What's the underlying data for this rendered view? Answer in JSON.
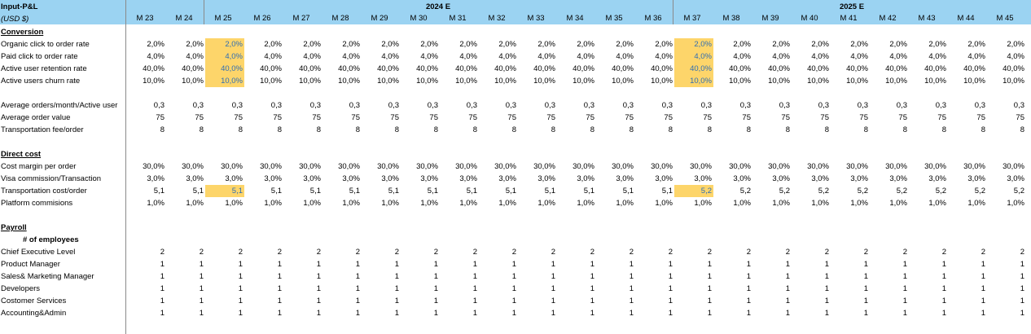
{
  "sheet": {
    "title": "Input-P&L",
    "currency": "(USD $)",
    "years": [
      "2024 E",
      "2025 E"
    ],
    "months": [
      "M 23",
      "M 24",
      "M 25",
      "M 26",
      "M 27",
      "M 28",
      "M 29",
      "M 30",
      "M 31",
      "M 32",
      "M 33",
      "M 34",
      "M 35",
      "M 36",
      "M 37",
      "M 38",
      "M 39",
      "M 40",
      "M 41",
      "M 42",
      "M 43",
      "M 44",
      "M 45"
    ],
    "highlight_color": "#fdd56a",
    "header_color": "#9bd3f2",
    "rows": [
      {
        "label": "Conversion",
        "type": "section"
      },
      {
        "label": "Organic click to order rate",
        "values": [
          "2,0%",
          "2,0%",
          "2,0%",
          "2,0%",
          "2,0%",
          "2,0%",
          "2,0%",
          "2,0%",
          "2,0%",
          "2,0%",
          "2,0%",
          "2,0%",
          "2,0%",
          "2,0%",
          "2,0%",
          "2,0%",
          "2,0%",
          "2,0%",
          "2,0%",
          "2,0%",
          "2,0%",
          "2,0%",
          "2,0%"
        ],
        "highlight": [
          2,
          14
        ]
      },
      {
        "label": "Paid click to order rate",
        "values": [
          "4,0%",
          "4,0%",
          "4,0%",
          "4,0%",
          "4,0%",
          "4,0%",
          "4,0%",
          "4,0%",
          "4,0%",
          "4,0%",
          "4,0%",
          "4,0%",
          "4,0%",
          "4,0%",
          "4,0%",
          "4,0%",
          "4,0%",
          "4,0%",
          "4,0%",
          "4,0%",
          "4,0%",
          "4,0%",
          "4,0%"
        ],
        "highlight": [
          2,
          14
        ]
      },
      {
        "label": "Active user retention rate",
        "values": [
          "40,0%",
          "40,0%",
          "40,0%",
          "40,0%",
          "40,0%",
          "40,0%",
          "40,0%",
          "40,0%",
          "40,0%",
          "40,0%",
          "40,0%",
          "40,0%",
          "40,0%",
          "40,0%",
          "40,0%",
          "40,0%",
          "40,0%",
          "40,0%",
          "40,0%",
          "40,0%",
          "40,0%",
          "40,0%",
          "40,0%"
        ],
        "highlight": [
          2,
          14
        ]
      },
      {
        "label": "Active users churn rate",
        "values": [
          "10,0%",
          "10,0%",
          "10,0%",
          "10,0%",
          "10,0%",
          "10,0%",
          "10,0%",
          "10,0%",
          "10,0%",
          "10,0%",
          "10,0%",
          "10,0%",
          "10,0%",
          "10,0%",
          "10,0%",
          "10,0%",
          "10,0%",
          "10,0%",
          "10,0%",
          "10,0%",
          "10,0%",
          "10,0%",
          "10,0%"
        ],
        "highlight": [
          2,
          14
        ]
      },
      {
        "label": "",
        "type": "blank"
      },
      {
        "label": "Average orders/month/Active user",
        "values": [
          "0,3",
          "0,3",
          "0,3",
          "0,3",
          "0,3",
          "0,3",
          "0,3",
          "0,3",
          "0,3",
          "0,3",
          "0,3",
          "0,3",
          "0,3",
          "0,3",
          "0,3",
          "0,3",
          "0,3",
          "0,3",
          "0,3",
          "0,3",
          "0,3",
          "0,3",
          "0,3"
        ]
      },
      {
        "label": "Average order value",
        "values": [
          "75",
          "75",
          "75",
          "75",
          "75",
          "75",
          "75",
          "75",
          "75",
          "75",
          "75",
          "75",
          "75",
          "75",
          "75",
          "75",
          "75",
          "75",
          "75",
          "75",
          "75",
          "75",
          "75"
        ]
      },
      {
        "label": "Transportation fee/order",
        "values": [
          "8",
          "8",
          "8",
          "8",
          "8",
          "8",
          "8",
          "8",
          "8",
          "8",
          "8",
          "8",
          "8",
          "8",
          "8",
          "8",
          "8",
          "8",
          "8",
          "8",
          "8",
          "8",
          "8"
        ]
      },
      {
        "label": "",
        "type": "blank"
      },
      {
        "label": "Direct cost",
        "type": "section"
      },
      {
        "label": "Cost margin per order",
        "values": [
          "30,0%",
          "30,0%",
          "30,0%",
          "30,0%",
          "30,0%",
          "30,0%",
          "30,0%",
          "30,0%",
          "30,0%",
          "30,0%",
          "30,0%",
          "30,0%",
          "30,0%",
          "30,0%",
          "30,0%",
          "30,0%",
          "30,0%",
          "30,0%",
          "30,0%",
          "30,0%",
          "30,0%",
          "30,0%",
          "30,0%"
        ]
      },
      {
        "label": "Visa commission/Transaction",
        "values": [
          "3,0%",
          "3,0%",
          "3,0%",
          "3,0%",
          "3,0%",
          "3,0%",
          "3,0%",
          "3,0%",
          "3,0%",
          "3,0%",
          "3,0%",
          "3,0%",
          "3,0%",
          "3,0%",
          "3,0%",
          "3,0%",
          "3,0%",
          "3,0%",
          "3,0%",
          "3,0%",
          "3,0%",
          "3,0%",
          "3,0%"
        ]
      },
      {
        "label": "Transportation cost/order",
        "values": [
          "5,1",
          "5,1",
          "5,1",
          "5,1",
          "5,1",
          "5,1",
          "5,1",
          "5,1",
          "5,1",
          "5,1",
          "5,1",
          "5,1",
          "5,1",
          "5,1",
          "5,2",
          "5,2",
          "5,2",
          "5,2",
          "5,2",
          "5,2",
          "5,2",
          "5,2",
          "5,2"
        ],
        "highlight": [
          2,
          14
        ]
      },
      {
        "label": "Platform commisions",
        "values": [
          "1,0%",
          "1,0%",
          "1,0%",
          "1,0%",
          "1,0%",
          "1,0%",
          "1,0%",
          "1,0%",
          "1,0%",
          "1,0%",
          "1,0%",
          "1,0%",
          "1,0%",
          "1,0%",
          "1,0%",
          "1,0%",
          "1,0%",
          "1,0%",
          "1,0%",
          "1,0%",
          "1,0%",
          "1,0%",
          "1,0%"
        ]
      },
      {
        "label": "",
        "type": "blank"
      },
      {
        "label": "Payroll",
        "type": "section"
      },
      {
        "label": "# of employees",
        "type": "subheader"
      },
      {
        "label": "Chief Executive Level",
        "values": [
          "2",
          "2",
          "2",
          "2",
          "2",
          "2",
          "2",
          "2",
          "2",
          "2",
          "2",
          "2",
          "2",
          "2",
          "2",
          "2",
          "2",
          "2",
          "2",
          "2",
          "2",
          "2",
          "2"
        ]
      },
      {
        "label": "Product Manager",
        "values": [
          "1",
          "1",
          "1",
          "1",
          "1",
          "1",
          "1",
          "1",
          "1",
          "1",
          "1",
          "1",
          "1",
          "1",
          "1",
          "1",
          "1",
          "1",
          "1",
          "1",
          "1",
          "1",
          "1"
        ]
      },
      {
        "label": "Sales& Marketing Manager",
        "values": [
          "1",
          "1",
          "1",
          "1",
          "1",
          "1",
          "1",
          "1",
          "1",
          "1",
          "1",
          "1",
          "1",
          "1",
          "1",
          "1",
          "1",
          "1",
          "1",
          "1",
          "1",
          "1",
          "1"
        ]
      },
      {
        "label": "Developers",
        "values": [
          "1",
          "1",
          "1",
          "1",
          "1",
          "1",
          "1",
          "1",
          "1",
          "1",
          "1",
          "1",
          "1",
          "1",
          "1",
          "1",
          "1",
          "1",
          "1",
          "1",
          "1",
          "1",
          "1"
        ]
      },
      {
        "label": "Costomer Services",
        "values": [
          "1",
          "1",
          "1",
          "1",
          "1",
          "1",
          "1",
          "1",
          "1",
          "1",
          "1",
          "1",
          "1",
          "1",
          "1",
          "1",
          "1",
          "1",
          "1",
          "1",
          "1",
          "1",
          "1"
        ]
      },
      {
        "label": "Accounting&Admin",
        "values": [
          "1",
          "1",
          "1",
          "1",
          "1",
          "1",
          "1",
          "1",
          "1",
          "1",
          "1",
          "1",
          "1",
          "1",
          "1",
          "1",
          "1",
          "1",
          "1",
          "1",
          "1",
          "1",
          "1"
        ]
      }
    ]
  }
}
